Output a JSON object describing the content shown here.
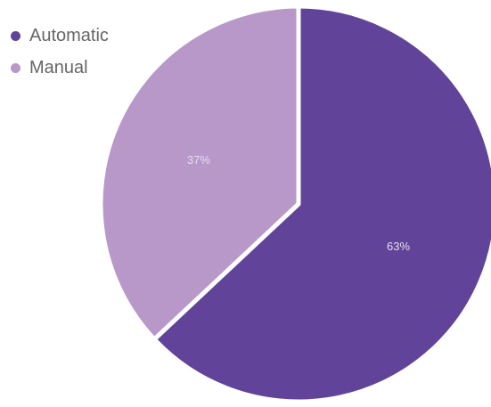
{
  "chart_data": {
    "type": "pie",
    "categories": [
      "Automatic",
      "Manual"
    ],
    "values": [
      63,
      37
    ],
    "value_labels": [
      "63%",
      "37%"
    ],
    "colors": [
      "#614499",
      "#b898c9"
    ],
    "legend": {
      "position": "top-left",
      "entries": [
        {
          "label": "Automatic",
          "color": "#614499"
        },
        {
          "label": "Manual",
          "color": "#b898c9"
        }
      ]
    },
    "label_color": "#e6dcef"
  }
}
